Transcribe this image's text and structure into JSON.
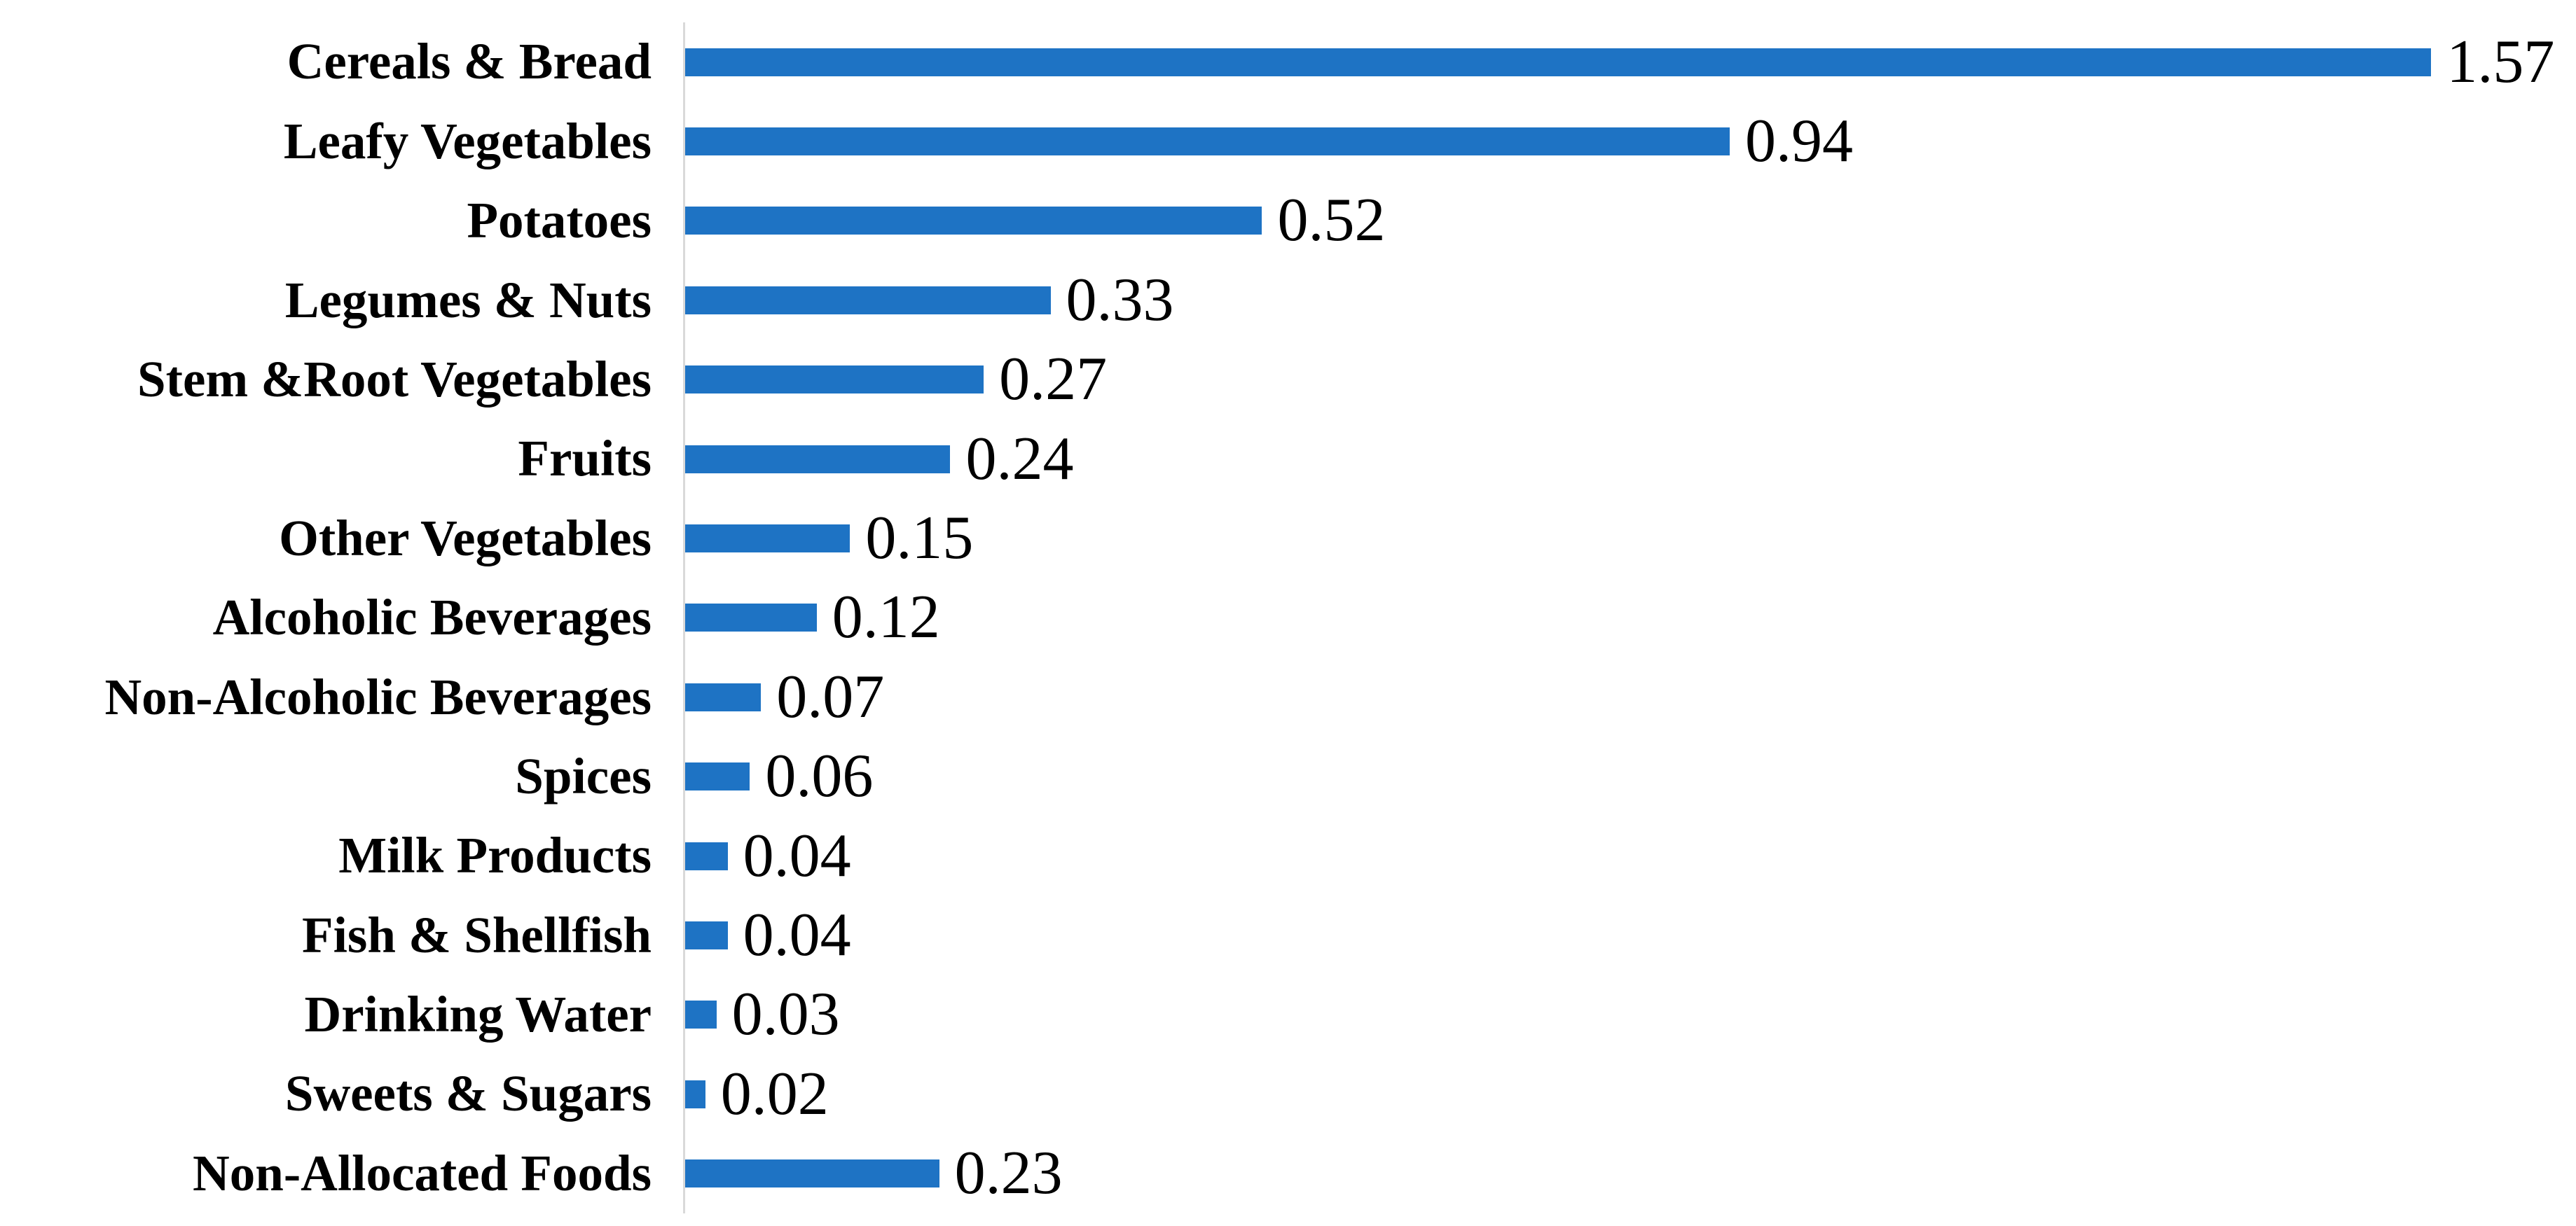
{
  "chart_data": {
    "type": "bar",
    "orientation": "horizontal",
    "categories": [
      "Cereals & Bread",
      "Leafy Vegetables",
      "Potatoes",
      "Legumes & Nuts",
      "Stem &Root Vegetables",
      "Fruits",
      "Other Vegetables",
      "Alcoholic Beverages",
      "Non-Alcoholic Beverages",
      "Spices",
      "Milk Products",
      "Fish & Shellfish",
      "Drinking Water",
      "Sweets & Sugars",
      "Non-Allocated Foods"
    ],
    "values": [
      1.57,
      0.94,
      0.52,
      0.33,
      0.27,
      0.24,
      0.15,
      0.12,
      0.07,
      0.06,
      0.04,
      0.04,
      0.03,
      0.02,
      0.23
    ],
    "value_labels": [
      "1.57",
      "0.94",
      "0.52",
      "0.33",
      "0.27",
      "0.24",
      "0.15",
      "0.12",
      "0.07",
      "0.06",
      "0.04",
      "0.04",
      "0.03",
      "0.02",
      "0.23"
    ],
    "xlim": [
      0,
      1.7
    ],
    "grid": false,
    "legend": false,
    "data_labels": true,
    "bar_color": "#1E73C4",
    "axis_line_color": "#D9D9D9",
    "text_color": "#000000"
  }
}
